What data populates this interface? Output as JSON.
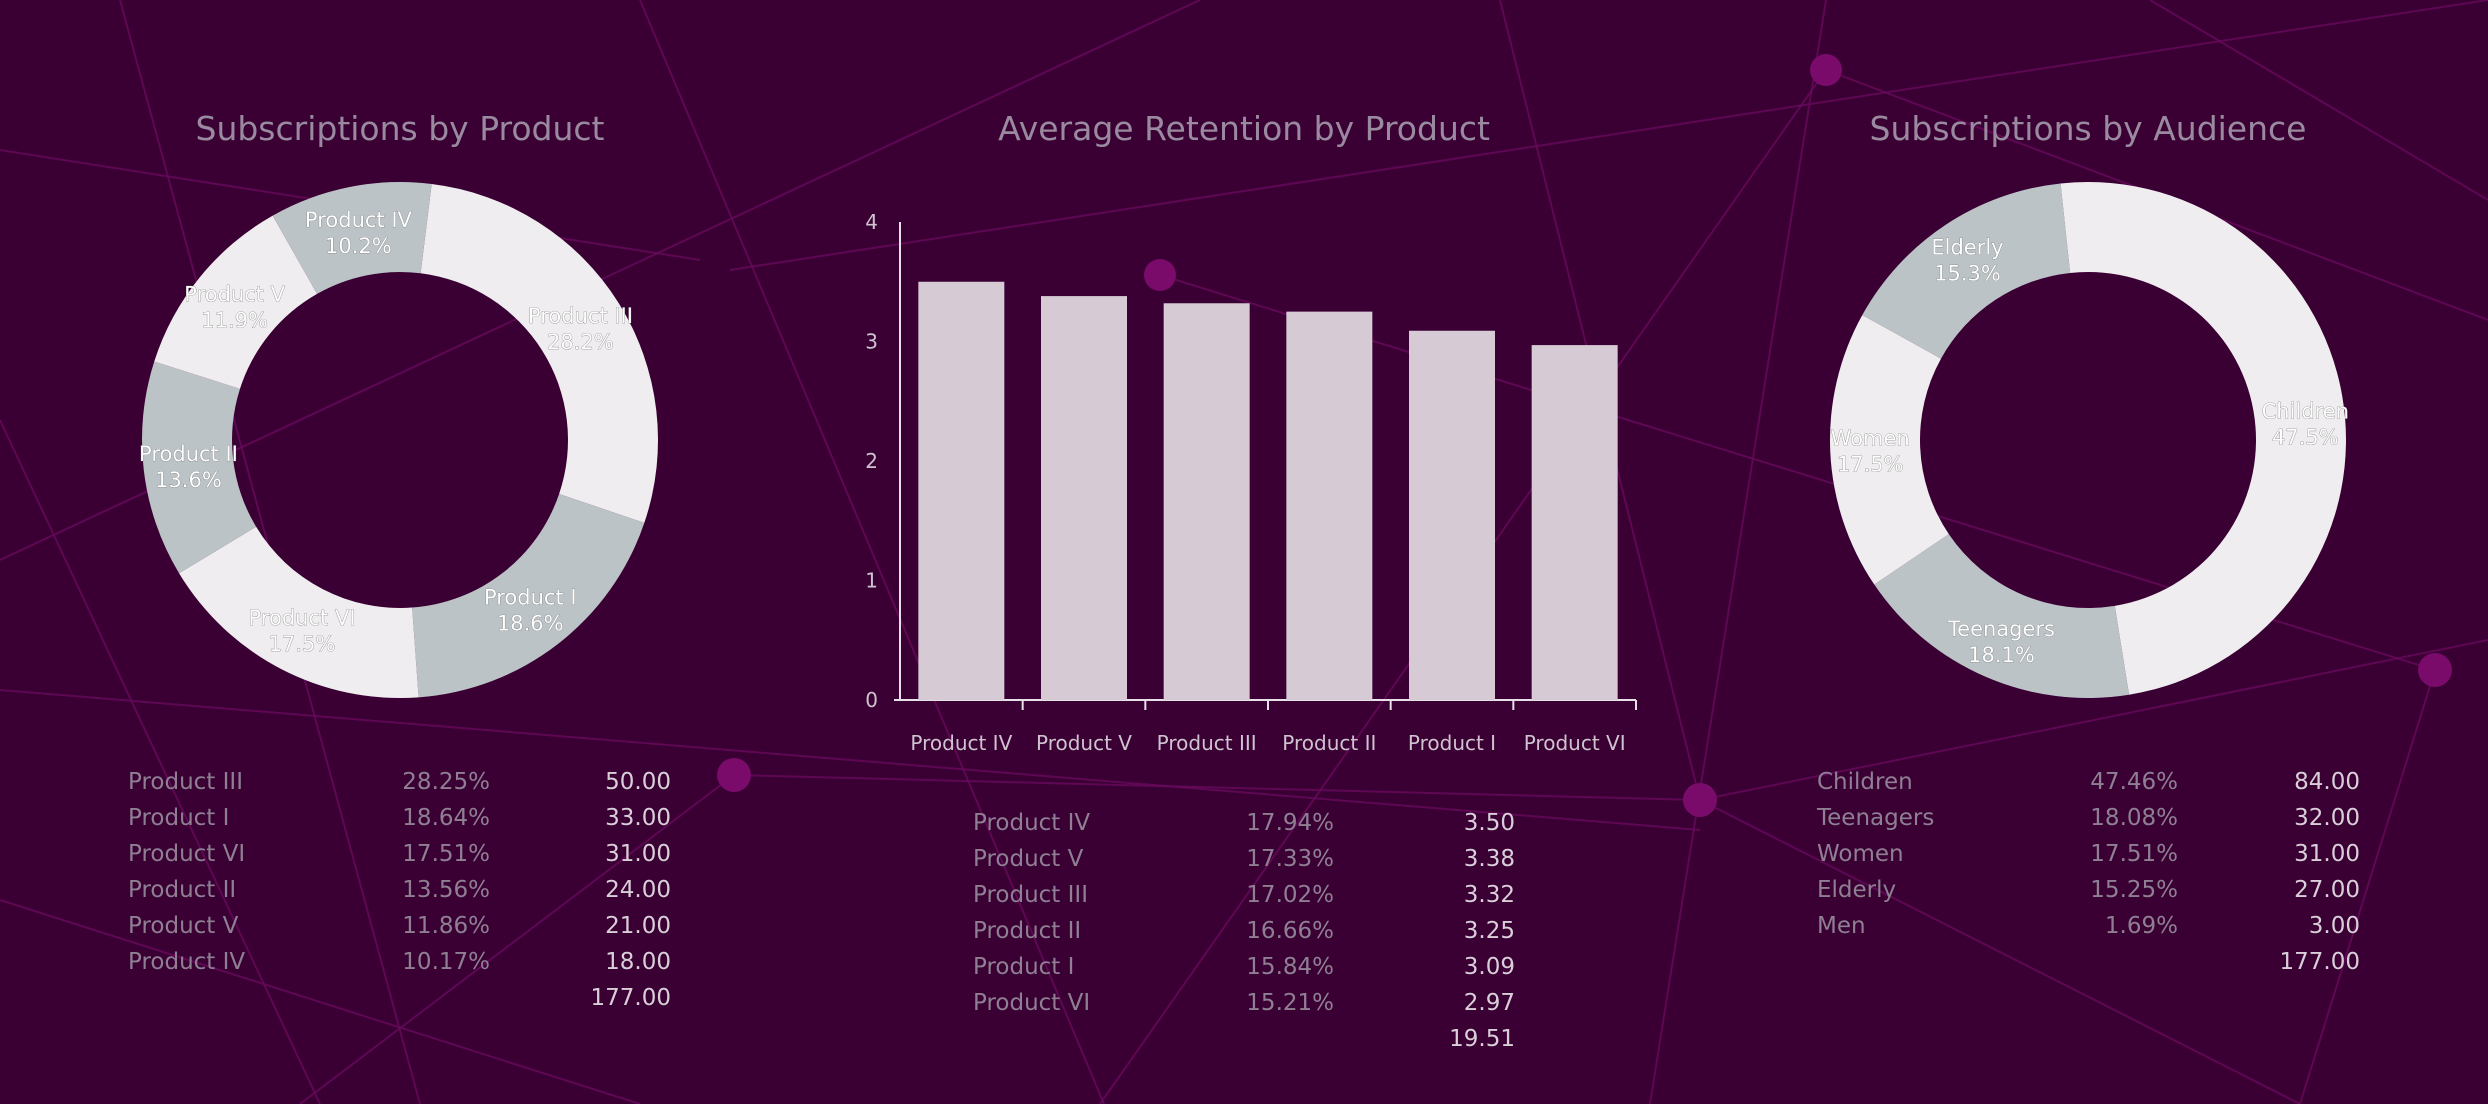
{
  "colors": {
    "background": "#3a0034",
    "network": "#6a0a5e",
    "node": "#7a0b6b",
    "slice_light": "#efedef",
    "slice_gray": "#bcc3c6",
    "bar": "#d6cad4"
  },
  "chart_data": [
    {
      "type": "pie",
      "title": "Subscriptions by Product",
      "slices": [
        {
          "label": "Product III",
          "pct_label": "28.2%",
          "value": 50,
          "color": "#efedef"
        },
        {
          "label": "Product I",
          "pct_label": "18.6%",
          "value": 33,
          "color": "#bcc3c6"
        },
        {
          "label": "Product VI",
          "pct_label": "17.5%",
          "value": 31,
          "color": "#efedef"
        },
        {
          "label": "Product II",
          "pct_label": "13.6%",
          "value": 24,
          "color": "#bcc3c6"
        },
        {
          "label": "Product V",
          "pct_label": "11.9%",
          "value": 21,
          "color": "#efedef"
        },
        {
          "label": "Product IV",
          "pct_label": "10.2%",
          "value": 18,
          "color": "#bcc3c6"
        }
      ],
      "table": {
        "rows": [
          {
            "name": "Product III",
            "pct": "28.25%",
            "value": "50.00"
          },
          {
            "name": "Product I",
            "pct": "18.64%",
            "value": "33.00"
          },
          {
            "name": "Product VI",
            "pct": "17.51%",
            "value": "31.00"
          },
          {
            "name": "Product II",
            "pct": "13.56%",
            "value": "24.00"
          },
          {
            "name": "Product V",
            "pct": "11.86%",
            "value": "21.00"
          },
          {
            "name": "Product IV",
            "pct": "10.17%",
            "value": "18.00"
          }
        ],
        "total": "177.00"
      }
    },
    {
      "type": "bar",
      "title": "Average Retention by Product",
      "categories": [
        "Product IV",
        "Product V",
        "Product III",
        "Product II",
        "Product I",
        "Product VI"
      ],
      "values": [
        3.5,
        3.38,
        3.32,
        3.25,
        3.09,
        2.97
      ],
      "ylim": [
        0,
        4
      ],
      "yticks": [
        "0",
        "1",
        "2",
        "3",
        "4"
      ],
      "grid": false,
      "table": {
        "rows": [
          {
            "name": "Product IV",
            "pct": "17.94%",
            "value": "3.50"
          },
          {
            "name": "Product V",
            "pct": "17.33%",
            "value": "3.38"
          },
          {
            "name": "Product III",
            "pct": "17.02%",
            "value": "3.32"
          },
          {
            "name": "Product II",
            "pct": "16.66%",
            "value": "3.25"
          },
          {
            "name": "Product I",
            "pct": "15.84%",
            "value": "3.09"
          },
          {
            "name": "Product VI",
            "pct": "15.21%",
            "value": "2.97"
          }
        ],
        "total": "19.51"
      }
    },
    {
      "type": "pie",
      "title": "Subscriptions by Audience",
      "slices": [
        {
          "label": "Children",
          "pct_label": "47.5%",
          "value": 84,
          "color": "#efedef"
        },
        {
          "label": "Teenagers",
          "pct_label": "18.1%",
          "value": 32,
          "color": "#bcc3c6"
        },
        {
          "label": "Women",
          "pct_label": "17.5%",
          "value": 31,
          "color": "#efedef"
        },
        {
          "label": "Elderly",
          "pct_label": "15.3%",
          "value": 27,
          "color": "#bcc3c6"
        },
        {
          "label": "Men",
          "pct_label": "",
          "value": 3,
          "color": "#efedef"
        }
      ],
      "table": {
        "rows": [
          {
            "name": "Children",
            "pct": "47.46%",
            "value": "84.00"
          },
          {
            "name": "Teenagers",
            "pct": "18.08%",
            "value": "32.00"
          },
          {
            "name": "Women",
            "pct": "17.51%",
            "value": "31.00"
          },
          {
            "name": "Elderly",
            "pct": "15.25%",
            "value": "27.00"
          },
          {
            "name": "Men",
            "pct": "1.69%",
            "value": "3.00"
          }
        ],
        "total": "177.00"
      }
    }
  ]
}
